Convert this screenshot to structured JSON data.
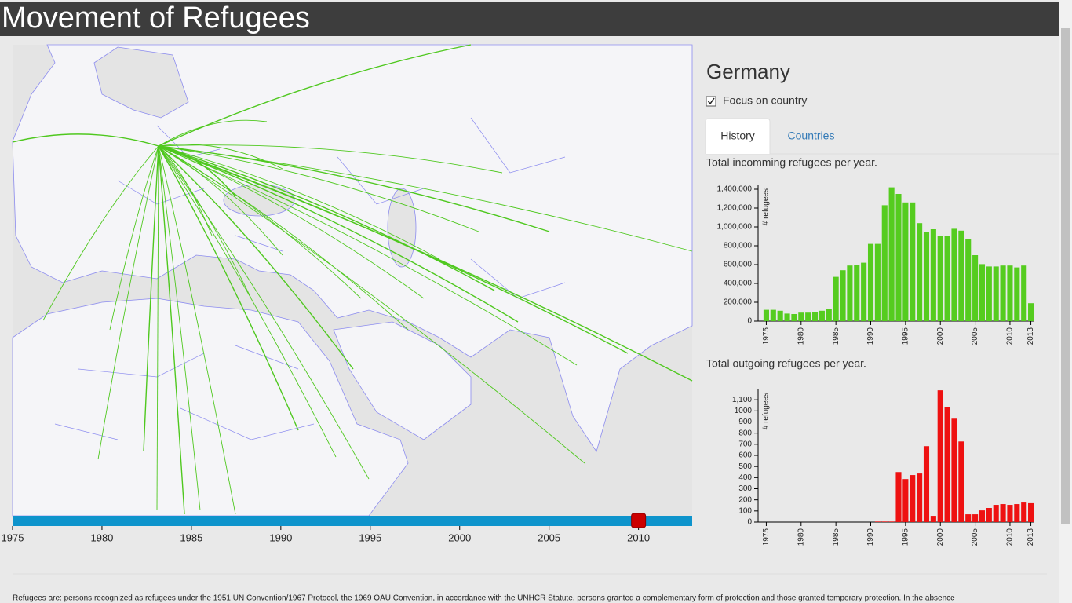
{
  "header": {
    "title": "Movement of Refugees"
  },
  "map": {
    "slider": {
      "xlim": [
        1975,
        2013
      ],
      "xticks": [
        1975,
        1980,
        1985,
        1990,
        1995,
        2000,
        2005,
        2010
      ],
      "value": 2010
    }
  },
  "panel": {
    "country": "Germany",
    "focus_label": "Focus on country",
    "focus_checked": true,
    "tabs": [
      "History",
      "Countries"
    ],
    "active_tab": 0
  },
  "chart_data": [
    {
      "type": "bar",
      "title": "Total incomming refugees per year.",
      "ylabel": "# refugees",
      "categories": [
        "1975",
        null,
        null,
        null,
        null,
        "1980",
        null,
        null,
        null,
        null,
        "1985",
        null,
        null,
        null,
        null,
        "1990",
        null,
        null,
        null,
        null,
        "1995",
        null,
        null,
        null,
        null,
        "2000",
        null,
        null,
        null,
        null,
        "2005",
        null,
        null,
        null,
        null,
        "2010",
        null,
        null,
        "2013"
      ],
      "values": [
        120000,
        120000,
        110000,
        80000,
        75000,
        90000,
        90000,
        95000,
        110000,
        125000,
        470000,
        540000,
        590000,
        600000,
        620000,
        820000,
        820000,
        1230000,
        1420000,
        1350000,
        1260000,
        1260000,
        1040000,
        950000,
        975000,
        905000,
        905000,
        980000,
        960000,
        875000,
        700000,
        605000,
        580000,
        580000,
        590000,
        590000,
        570000,
        590000,
        190000
      ],
      "color": "#55cc1f",
      "ylim": [
        0,
        1450000
      ],
      "yticks": [
        0,
        {
          "value": 200000,
          "label": "200,000"
        },
        {
          "value": 400000,
          "label": "400,000"
        },
        {
          "value": 600000,
          "label": "600,000"
        },
        {
          "value": 800000,
          "label": "800,000"
        },
        {
          "value": 1000000,
          "label": "1,000,000"
        },
        {
          "value": 1200000,
          "label": "1,200,000"
        },
        {
          "value": 1400000,
          "label": "1,400,000"
        }
      ]
    },
    {
      "type": "bar",
      "title": "Total outgoing refugees per year.",
      "ylabel": "# refugees",
      "categories": [
        "1975",
        null,
        null,
        null,
        null,
        "1980",
        null,
        null,
        null,
        null,
        "1985",
        null,
        null,
        null,
        null,
        "1990",
        null,
        null,
        null,
        null,
        "1995",
        null,
        null,
        null,
        null,
        "2000",
        null,
        null,
        null,
        null,
        "2005",
        null,
        null,
        null,
        null,
        "2010",
        null,
        null,
        "2013"
      ],
      "values": [
        0,
        0,
        0,
        0,
        0,
        0,
        0,
        0,
        0,
        0,
        0,
        0,
        0,
        0,
        0,
        0,
        5,
        5,
        5,
        450,
        387,
        423,
        437,
        683,
        56,
        1185,
        1035,
        930,
        725,
        70,
        70,
        105,
        127,
        155,
        162,
        155,
        162,
        176,
        170
      ],
      "color": "#ee1111",
      "ylim": [
        0,
        1200
      ],
      "yticks": [
        0,
        100,
        200,
        300,
        400,
        500,
        600,
        700,
        800,
        900,
        1000,
        {
          "value": 1100,
          "label": "1,100"
        }
      ]
    }
  ],
  "footer": {
    "text": "Refugees are: persons recognized as refugees under the 1951 UN Convention/1967 Protocol, the 1969 OAU Convention, in accordance with the UNHCR Statute, persons granted a complementary form of protection and those granted temporary protection. In the absence"
  }
}
